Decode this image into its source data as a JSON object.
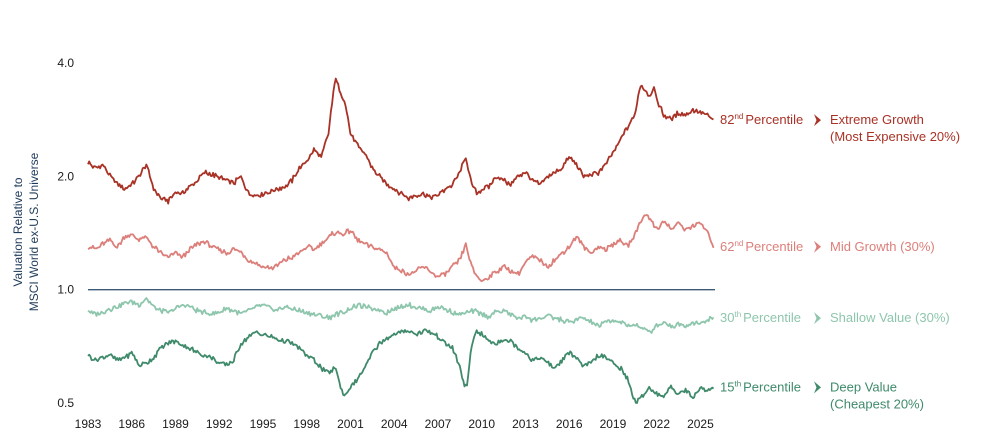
{
  "chart_data": {
    "type": "line",
    "title": "",
    "xlabel": "",
    "ylabel_lines": [
      "Valuation Relative to",
      "MSCI World ex-U.S. Universe"
    ],
    "y_scale": "log",
    "ylim": [
      0.5,
      4.0
    ],
    "xlim": [
      1983,
      2026
    ],
    "y_ticks": [
      0.5,
      1.0,
      2.0,
      4.0
    ],
    "y_tick_labels": [
      "0.5",
      "1.0",
      "2.0",
      "4.0"
    ],
    "x_ticks": [
      1983,
      1986,
      1989,
      1992,
      1995,
      1998,
      2001,
      2004,
      2007,
      2010,
      2013,
      2016,
      2019,
      2022,
      2025
    ],
    "x_tick_labels": [
      "1983",
      "1986",
      "1989",
      "1992",
      "1995",
      "1998",
      "2001",
      "2004",
      "2007",
      "2010",
      "2013",
      "2016",
      "2019",
      "2022",
      "2025"
    ],
    "reference_line": {
      "y": 1.0,
      "color": "#3b5a78"
    },
    "grid": false,
    "series": [
      {
        "key": "extreme",
        "color": "#a93226",
        "x": [
          1983.0,
          1983.5,
          1984.0,
          1984.5,
          1985.0,
          1985.5,
          1986.0,
          1986.5,
          1987.0,
          1987.5,
          1988.0,
          1988.5,
          1989.0,
          1989.5,
          1990.0,
          1990.5,
          1991.0,
          1991.5,
          1992.0,
          1992.5,
          1993.0,
          1993.5,
          1994.0,
          1994.5,
          1995.0,
          1995.5,
          1996.0,
          1996.5,
          1997.0,
          1997.5,
          1998.0,
          1998.5,
          1999.0,
          1999.5,
          2000.0,
          2000.3,
          2000.6,
          2001.0,
          2001.5,
          2002.0,
          2002.5,
          2003.0,
          2003.5,
          2004.0,
          2004.5,
          2005.0,
          2005.5,
          2006.0,
          2006.5,
          2007.0,
          2007.5,
          2008.0,
          2008.5,
          2008.9,
          2009.3,
          2009.7,
          2010.0,
          2010.5,
          2011.0,
          2011.5,
          2012.0,
          2012.5,
          2013.0,
          2013.5,
          2014.0,
          2014.5,
          2015.0,
          2015.5,
          2016.0,
          2016.5,
          2017.0,
          2017.5,
          2018.0,
          2018.5,
          2019.0,
          2019.5,
          2020.0,
          2020.5,
          2020.9,
          2021.2,
          2021.5,
          2021.8,
          2022.0,
          2022.5,
          2023.0,
          2023.5,
          2024.0,
          2024.5,
          2025.0,
          2025.5,
          2025.9
        ],
        "y": [
          2.18,
          2.1,
          2.15,
          2.0,
          1.92,
          1.85,
          1.9,
          2.0,
          2.15,
          1.85,
          1.75,
          1.72,
          1.82,
          1.8,
          1.88,
          1.95,
          2.05,
          2.02,
          1.98,
          1.95,
          1.92,
          2.0,
          1.8,
          1.78,
          1.8,
          1.82,
          1.85,
          1.88,
          1.95,
          2.1,
          2.2,
          2.35,
          2.25,
          2.6,
          3.7,
          3.3,
          3.2,
          2.6,
          2.4,
          2.3,
          2.1,
          2.0,
          1.9,
          1.85,
          1.8,
          1.75,
          1.78,
          1.8,
          1.76,
          1.78,
          1.85,
          1.9,
          2.05,
          2.25,
          1.9,
          1.8,
          1.85,
          1.88,
          2.0,
          1.95,
          1.9,
          2.0,
          2.05,
          1.95,
          1.9,
          2.0,
          2.05,
          2.1,
          2.25,
          2.15,
          2.0,
          2.02,
          2.05,
          2.15,
          2.3,
          2.5,
          2.7,
          2.9,
          3.5,
          3.4,
          3.25,
          3.45,
          3.2,
          2.9,
          2.85,
          2.95,
          2.9,
          3.0,
          2.95,
          2.9,
          2.82
        ]
      },
      {
        "key": "mid",
        "color": "#dc7f7a",
        "x": [
          1983.0,
          1983.5,
          1984.0,
          1984.5,
          1985.0,
          1985.5,
          1986.0,
          1986.5,
          1987.0,
          1987.5,
          1988.0,
          1988.5,
          1989.0,
          1989.5,
          1990.0,
          1990.5,
          1991.0,
          1991.5,
          1992.0,
          1992.5,
          1993.0,
          1993.5,
          1994.0,
          1994.5,
          1995.0,
          1995.5,
          1996.0,
          1996.5,
          1997.0,
          1997.5,
          1998.0,
          1998.5,
          1999.0,
          1999.5,
          2000.0,
          2000.5,
          2001.0,
          2001.5,
          2002.0,
          2002.5,
          2003.0,
          2003.5,
          2004.0,
          2004.5,
          2005.0,
          2005.5,
          2006.0,
          2006.5,
          2007.0,
          2007.5,
          2008.0,
          2008.5,
          2008.9,
          2009.3,
          2009.7,
          2010.0,
          2010.5,
          2011.0,
          2011.5,
          2012.0,
          2012.5,
          2013.0,
          2013.5,
          2014.0,
          2014.5,
          2015.0,
          2015.5,
          2016.0,
          2016.5,
          2017.0,
          2017.5,
          2018.0,
          2018.5,
          2019.0,
          2019.5,
          2020.0,
          2020.5,
          2020.9,
          2021.3,
          2021.7,
          2022.0,
          2022.5,
          2023.0,
          2023.5,
          2024.0,
          2024.5,
          2025.0,
          2025.5,
          2025.9
        ],
        "y": [
          1.3,
          1.28,
          1.32,
          1.35,
          1.3,
          1.38,
          1.4,
          1.36,
          1.38,
          1.3,
          1.25,
          1.22,
          1.25,
          1.22,
          1.28,
          1.32,
          1.34,
          1.3,
          1.27,
          1.25,
          1.28,
          1.26,
          1.2,
          1.18,
          1.15,
          1.14,
          1.16,
          1.2,
          1.22,
          1.25,
          1.3,
          1.28,
          1.33,
          1.38,
          1.42,
          1.4,
          1.44,
          1.35,
          1.32,
          1.3,
          1.28,
          1.25,
          1.15,
          1.12,
          1.1,
          1.12,
          1.15,
          1.12,
          1.08,
          1.1,
          1.15,
          1.2,
          1.32,
          1.15,
          1.08,
          1.05,
          1.08,
          1.12,
          1.15,
          1.12,
          1.1,
          1.18,
          1.22,
          1.2,
          1.15,
          1.2,
          1.25,
          1.3,
          1.38,
          1.3,
          1.25,
          1.3,
          1.28,
          1.32,
          1.35,
          1.3,
          1.4,
          1.52,
          1.6,
          1.5,
          1.45,
          1.52,
          1.45,
          1.5,
          1.44,
          1.48,
          1.5,
          1.42,
          1.3
        ]
      },
      {
        "key": "shallow",
        "color": "#8ec6ad",
        "x": [
          1983.0,
          1983.5,
          1984.0,
          1984.5,
          1985.0,
          1985.5,
          1986.0,
          1986.5,
          1987.0,
          1987.5,
          1988.0,
          1988.5,
          1989.0,
          1989.5,
          1990.0,
          1990.5,
          1991.0,
          1991.5,
          1992.0,
          1992.5,
          1993.0,
          1993.5,
          1994.0,
          1994.5,
          1995.0,
          1995.5,
          1996.0,
          1996.5,
          1997.0,
          1997.5,
          1998.0,
          1998.5,
          1999.0,
          1999.5,
          2000.0,
          2000.5,
          2001.0,
          2001.5,
          2002.0,
          2002.5,
          2003.0,
          2003.5,
          2004.0,
          2004.5,
          2005.0,
          2005.5,
          2006.0,
          2006.5,
          2007.0,
          2007.5,
          2008.0,
          2008.5,
          2009.0,
          2009.5,
          2010.0,
          2010.5,
          2011.0,
          2011.5,
          2012.0,
          2012.5,
          2013.0,
          2013.5,
          2014.0,
          2014.5,
          2015.0,
          2015.5,
          2016.0,
          2016.5,
          2017.0,
          2017.5,
          2018.0,
          2018.5,
          2019.0,
          2019.5,
          2020.0,
          2020.5,
          2021.0,
          2021.5,
          2022.0,
          2022.5,
          2023.0,
          2023.5,
          2024.0,
          2024.5,
          2025.0,
          2025.5,
          2025.9
        ],
        "y": [
          0.88,
          0.86,
          0.87,
          0.89,
          0.9,
          0.92,
          0.93,
          0.91,
          0.95,
          0.9,
          0.88,
          0.87,
          0.89,
          0.91,
          0.9,
          0.88,
          0.87,
          0.86,
          0.87,
          0.89,
          0.88,
          0.86,
          0.88,
          0.9,
          0.91,
          0.89,
          0.88,
          0.9,
          0.89,
          0.88,
          0.87,
          0.86,
          0.85,
          0.84,
          0.86,
          0.87,
          0.89,
          0.91,
          0.9,
          0.89,
          0.88,
          0.87,
          0.89,
          0.9,
          0.91,
          0.9,
          0.89,
          0.88,
          0.9,
          0.89,
          0.87,
          0.86,
          0.87,
          0.88,
          0.86,
          0.85,
          0.87,
          0.88,
          0.86,
          0.84,
          0.85,
          0.83,
          0.84,
          0.85,
          0.84,
          0.83,
          0.82,
          0.83,
          0.84,
          0.82,
          0.8,
          0.82,
          0.83,
          0.82,
          0.8,
          0.81,
          0.79,
          0.77,
          0.8,
          0.82,
          0.8,
          0.81,
          0.8,
          0.82,
          0.81,
          0.83,
          0.84
        ]
      },
      {
        "key": "deep",
        "color": "#3f8a6b",
        "x": [
          1983.0,
          1983.5,
          1984.0,
          1984.5,
          1985.0,
          1985.5,
          1986.0,
          1986.5,
          1987.0,
          1987.5,
          1988.0,
          1988.5,
          1989.0,
          1989.5,
          1990.0,
          1990.5,
          1991.0,
          1991.5,
          1992.0,
          1992.5,
          1993.0,
          1993.5,
          1994.0,
          1994.5,
          1995.0,
          1995.5,
          1996.0,
          1996.5,
          1997.0,
          1997.5,
          1998.0,
          1998.5,
          1999.0,
          1999.5,
          2000.0,
          2000.3,
          2000.6,
          2001.0,
          2001.5,
          2002.0,
          2002.5,
          2003.0,
          2003.5,
          2004.0,
          2004.5,
          2005.0,
          2005.5,
          2006.0,
          2006.5,
          2007.0,
          2007.5,
          2008.0,
          2008.5,
          2008.8,
          2009.0,
          2009.3,
          2009.6,
          2010.0,
          2010.5,
          2011.0,
          2011.5,
          2012.0,
          2012.5,
          2013.0,
          2013.5,
          2014.0,
          2014.5,
          2015.0,
          2015.5,
          2016.0,
          2016.5,
          2017.0,
          2017.5,
          2018.0,
          2018.5,
          2019.0,
          2019.5,
          2020.0,
          2020.3,
          2020.6,
          2021.0,
          2021.5,
          2022.0,
          2022.5,
          2023.0,
          2023.5,
          2024.0,
          2024.5,
          2025.0,
          2025.5,
          2025.9
        ],
        "y": [
          0.67,
          0.65,
          0.66,
          0.67,
          0.65,
          0.66,
          0.68,
          0.63,
          0.64,
          0.66,
          0.7,
          0.72,
          0.73,
          0.71,
          0.7,
          0.68,
          0.67,
          0.66,
          0.64,
          0.63,
          0.65,
          0.72,
          0.75,
          0.77,
          0.76,
          0.75,
          0.74,
          0.73,
          0.72,
          0.7,
          0.67,
          0.65,
          0.62,
          0.6,
          0.62,
          0.55,
          0.52,
          0.55,
          0.58,
          0.62,
          0.68,
          0.72,
          0.74,
          0.76,
          0.77,
          0.78,
          0.76,
          0.78,
          0.77,
          0.75,
          0.72,
          0.7,
          0.62,
          0.56,
          0.55,
          0.7,
          0.78,
          0.76,
          0.73,
          0.72,
          0.74,
          0.73,
          0.7,
          0.68,
          0.65,
          0.66,
          0.64,
          0.62,
          0.65,
          0.68,
          0.66,
          0.62,
          0.64,
          0.67,
          0.66,
          0.64,
          0.62,
          0.58,
          0.53,
          0.5,
          0.52,
          0.55,
          0.53,
          0.52,
          0.55,
          0.53,
          0.54,
          0.52,
          0.55,
          0.54,
          0.55
        ]
      }
    ],
    "annotations": [
      {
        "key": "extreme",
        "sup_num": "82",
        "sup": "nd",
        "percentile_word": "Percentile",
        "color": "#a93226",
        "label_lines": [
          "Extreme Growth",
          "(Most Expensive 20%)"
        ]
      },
      {
        "key": "mid",
        "sup_num": "62",
        "sup": "nd",
        "percentile_word": "Percentile",
        "color": "#dc7f7a",
        "label_lines": [
          "Mid Growth (30%)"
        ]
      },
      {
        "key": "shallow",
        "sup_num": "30",
        "sup": "th",
        "percentile_word": "Percentile",
        "color": "#8ec6ad",
        "label_lines": [
          "Shallow Value (30%)"
        ]
      },
      {
        "key": "deep",
        "sup_num": "15",
        "sup": "th",
        "percentile_word": "Percentile",
        "color": "#3f8a6b",
        "label_lines": [
          "Deep Value",
          "(Cheapest 20%)"
        ]
      }
    ],
    "axis_text_color": "#1b1b1b",
    "ylabel_color": "#1f3b5a"
  }
}
